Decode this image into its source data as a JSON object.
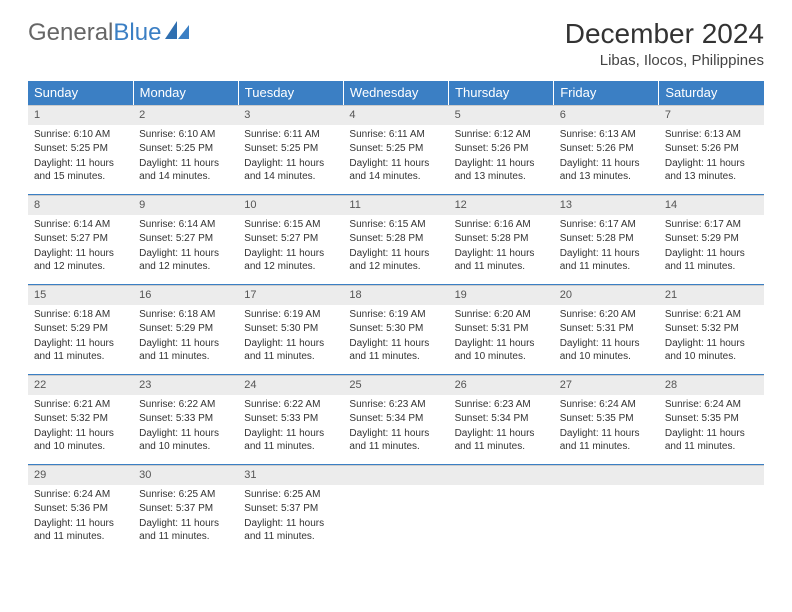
{
  "logo": {
    "part1": "General",
    "part2": "Blue"
  },
  "title": "December 2024",
  "location": "Libas, Ilocos, Philippines",
  "weekdays": [
    "Sunday",
    "Monday",
    "Tuesday",
    "Wednesday",
    "Thursday",
    "Friday",
    "Saturday"
  ],
  "colors": {
    "header_bg": "#3b7fc4",
    "header_text": "#ffffff",
    "daynum_bg": "#ececec",
    "border": "#3b7fc4"
  },
  "days": [
    {
      "n": "1",
      "sunrise": "Sunrise: 6:10 AM",
      "sunset": "Sunset: 5:25 PM",
      "daylight": "Daylight: 11 hours and 15 minutes."
    },
    {
      "n": "2",
      "sunrise": "Sunrise: 6:10 AM",
      "sunset": "Sunset: 5:25 PM",
      "daylight": "Daylight: 11 hours and 14 minutes."
    },
    {
      "n": "3",
      "sunrise": "Sunrise: 6:11 AM",
      "sunset": "Sunset: 5:25 PM",
      "daylight": "Daylight: 11 hours and 14 minutes."
    },
    {
      "n": "4",
      "sunrise": "Sunrise: 6:11 AM",
      "sunset": "Sunset: 5:25 PM",
      "daylight": "Daylight: 11 hours and 14 minutes."
    },
    {
      "n": "5",
      "sunrise": "Sunrise: 6:12 AM",
      "sunset": "Sunset: 5:26 PM",
      "daylight": "Daylight: 11 hours and 13 minutes."
    },
    {
      "n": "6",
      "sunrise": "Sunrise: 6:13 AM",
      "sunset": "Sunset: 5:26 PM",
      "daylight": "Daylight: 11 hours and 13 minutes."
    },
    {
      "n": "7",
      "sunrise": "Sunrise: 6:13 AM",
      "sunset": "Sunset: 5:26 PM",
      "daylight": "Daylight: 11 hours and 13 minutes."
    },
    {
      "n": "8",
      "sunrise": "Sunrise: 6:14 AM",
      "sunset": "Sunset: 5:27 PM",
      "daylight": "Daylight: 11 hours and 12 minutes."
    },
    {
      "n": "9",
      "sunrise": "Sunrise: 6:14 AM",
      "sunset": "Sunset: 5:27 PM",
      "daylight": "Daylight: 11 hours and 12 minutes."
    },
    {
      "n": "10",
      "sunrise": "Sunrise: 6:15 AM",
      "sunset": "Sunset: 5:27 PM",
      "daylight": "Daylight: 11 hours and 12 minutes."
    },
    {
      "n": "11",
      "sunrise": "Sunrise: 6:15 AM",
      "sunset": "Sunset: 5:28 PM",
      "daylight": "Daylight: 11 hours and 12 minutes."
    },
    {
      "n": "12",
      "sunrise": "Sunrise: 6:16 AM",
      "sunset": "Sunset: 5:28 PM",
      "daylight": "Daylight: 11 hours and 11 minutes."
    },
    {
      "n": "13",
      "sunrise": "Sunrise: 6:17 AM",
      "sunset": "Sunset: 5:28 PM",
      "daylight": "Daylight: 11 hours and 11 minutes."
    },
    {
      "n": "14",
      "sunrise": "Sunrise: 6:17 AM",
      "sunset": "Sunset: 5:29 PM",
      "daylight": "Daylight: 11 hours and 11 minutes."
    },
    {
      "n": "15",
      "sunrise": "Sunrise: 6:18 AM",
      "sunset": "Sunset: 5:29 PM",
      "daylight": "Daylight: 11 hours and 11 minutes."
    },
    {
      "n": "16",
      "sunrise": "Sunrise: 6:18 AM",
      "sunset": "Sunset: 5:29 PM",
      "daylight": "Daylight: 11 hours and 11 minutes."
    },
    {
      "n": "17",
      "sunrise": "Sunrise: 6:19 AM",
      "sunset": "Sunset: 5:30 PM",
      "daylight": "Daylight: 11 hours and 11 minutes."
    },
    {
      "n": "18",
      "sunrise": "Sunrise: 6:19 AM",
      "sunset": "Sunset: 5:30 PM",
      "daylight": "Daylight: 11 hours and 11 minutes."
    },
    {
      "n": "19",
      "sunrise": "Sunrise: 6:20 AM",
      "sunset": "Sunset: 5:31 PM",
      "daylight": "Daylight: 11 hours and 10 minutes."
    },
    {
      "n": "20",
      "sunrise": "Sunrise: 6:20 AM",
      "sunset": "Sunset: 5:31 PM",
      "daylight": "Daylight: 11 hours and 10 minutes."
    },
    {
      "n": "21",
      "sunrise": "Sunrise: 6:21 AM",
      "sunset": "Sunset: 5:32 PM",
      "daylight": "Daylight: 11 hours and 10 minutes."
    },
    {
      "n": "22",
      "sunrise": "Sunrise: 6:21 AM",
      "sunset": "Sunset: 5:32 PM",
      "daylight": "Daylight: 11 hours and 10 minutes."
    },
    {
      "n": "23",
      "sunrise": "Sunrise: 6:22 AM",
      "sunset": "Sunset: 5:33 PM",
      "daylight": "Daylight: 11 hours and 10 minutes."
    },
    {
      "n": "24",
      "sunrise": "Sunrise: 6:22 AM",
      "sunset": "Sunset: 5:33 PM",
      "daylight": "Daylight: 11 hours and 11 minutes."
    },
    {
      "n": "25",
      "sunrise": "Sunrise: 6:23 AM",
      "sunset": "Sunset: 5:34 PM",
      "daylight": "Daylight: 11 hours and 11 minutes."
    },
    {
      "n": "26",
      "sunrise": "Sunrise: 6:23 AM",
      "sunset": "Sunset: 5:34 PM",
      "daylight": "Daylight: 11 hours and 11 minutes."
    },
    {
      "n": "27",
      "sunrise": "Sunrise: 6:24 AM",
      "sunset": "Sunset: 5:35 PM",
      "daylight": "Daylight: 11 hours and 11 minutes."
    },
    {
      "n": "28",
      "sunrise": "Sunrise: 6:24 AM",
      "sunset": "Sunset: 5:35 PM",
      "daylight": "Daylight: 11 hours and 11 minutes."
    },
    {
      "n": "29",
      "sunrise": "Sunrise: 6:24 AM",
      "sunset": "Sunset: 5:36 PM",
      "daylight": "Daylight: 11 hours and 11 minutes."
    },
    {
      "n": "30",
      "sunrise": "Sunrise: 6:25 AM",
      "sunset": "Sunset: 5:37 PM",
      "daylight": "Daylight: 11 hours and 11 minutes."
    },
    {
      "n": "31",
      "sunrise": "Sunrise: 6:25 AM",
      "sunset": "Sunset: 5:37 PM",
      "daylight": "Daylight: 11 hours and 11 minutes."
    }
  ]
}
